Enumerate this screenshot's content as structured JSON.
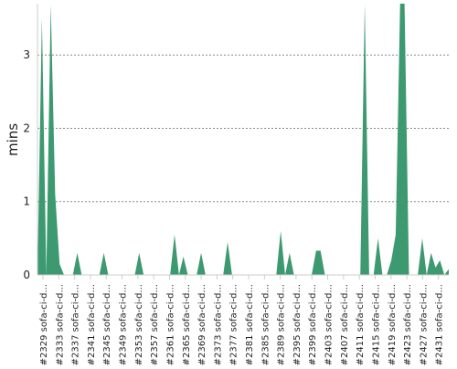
{
  "chart_data": {
    "type": "area",
    "title": "",
    "xlabel": "",
    "ylabel": "mins",
    "ylim": [
      0,
      3.7
    ],
    "yticks": [
      0,
      1,
      2,
      3
    ],
    "grid": true,
    "grid_style": "dashed",
    "fill_color": "#3d9970",
    "tick_labels": [
      "#2329 sofa-ci-d...",
      "#2333 sofa-ci-d...",
      "#2337 sofa-ci-d...",
      "#2341 sofa-ci-d...",
      "#2345 sofa-ci-d...",
      "#2349 sofa-ci-d...",
      "#2353 sofa-ci-d...",
      "#2357 sofa-ci-d...",
      "#2361 sofa-ci-d...",
      "#2365 sofa-ci-d...",
      "#2369 sofa-ci-d...",
      "#2373 sofa-ci-d...",
      "#2377 sofa-ci-d...",
      "#2381 sofa-ci-d...",
      "#2385 sofa-ci-d...",
      "#2389 sofa-ci-d...",
      "#2395 sofa-ci-d...",
      "#2399 sofa-ci-d...",
      "#2403 sofa-ci-d...",
      "#2407 sofa-ci-d...",
      "#2411 sofa-ci-d...",
      "#2415 sofa-ci-d...",
      "#2419 sofa-ci-d...",
      "#2423 sofa-ci-d...",
      "#2427 sofa-ci-d...",
      "#2431 sofa-ci-d..."
    ],
    "values": [
      0,
      3.5,
      0,
      3.7,
      1.1,
      0.15,
      0,
      0,
      0,
      0.3,
      0,
      0,
      0,
      0,
      0,
      0.3,
      0,
      0,
      0,
      0,
      0,
      0,
      0,
      0.3,
      0,
      0,
      0,
      0,
      0,
      0,
      0,
      0.55,
      0,
      0.25,
      0,
      0,
      0,
      0.3,
      0,
      0,
      0,
      0,
      0,
      0.45,
      0,
      0,
      0,
      0,
      0,
      0,
      0,
      0,
      0,
      0,
      0,
      0.6,
      0,
      0.3,
      0,
      0,
      0,
      0,
      0,
      0.33,
      0.33,
      0,
      0,
      0,
      0,
      0,
      0,
      0,
      0,
      0,
      3.7,
      0,
      0,
      0.5,
      0,
      0,
      0.2,
      0.55,
      3.7,
      3.7,
      0,
      0,
      0,
      0.5,
      0,
      0.3,
      0.1,
      0.2,
      0,
      0.08
    ]
  }
}
